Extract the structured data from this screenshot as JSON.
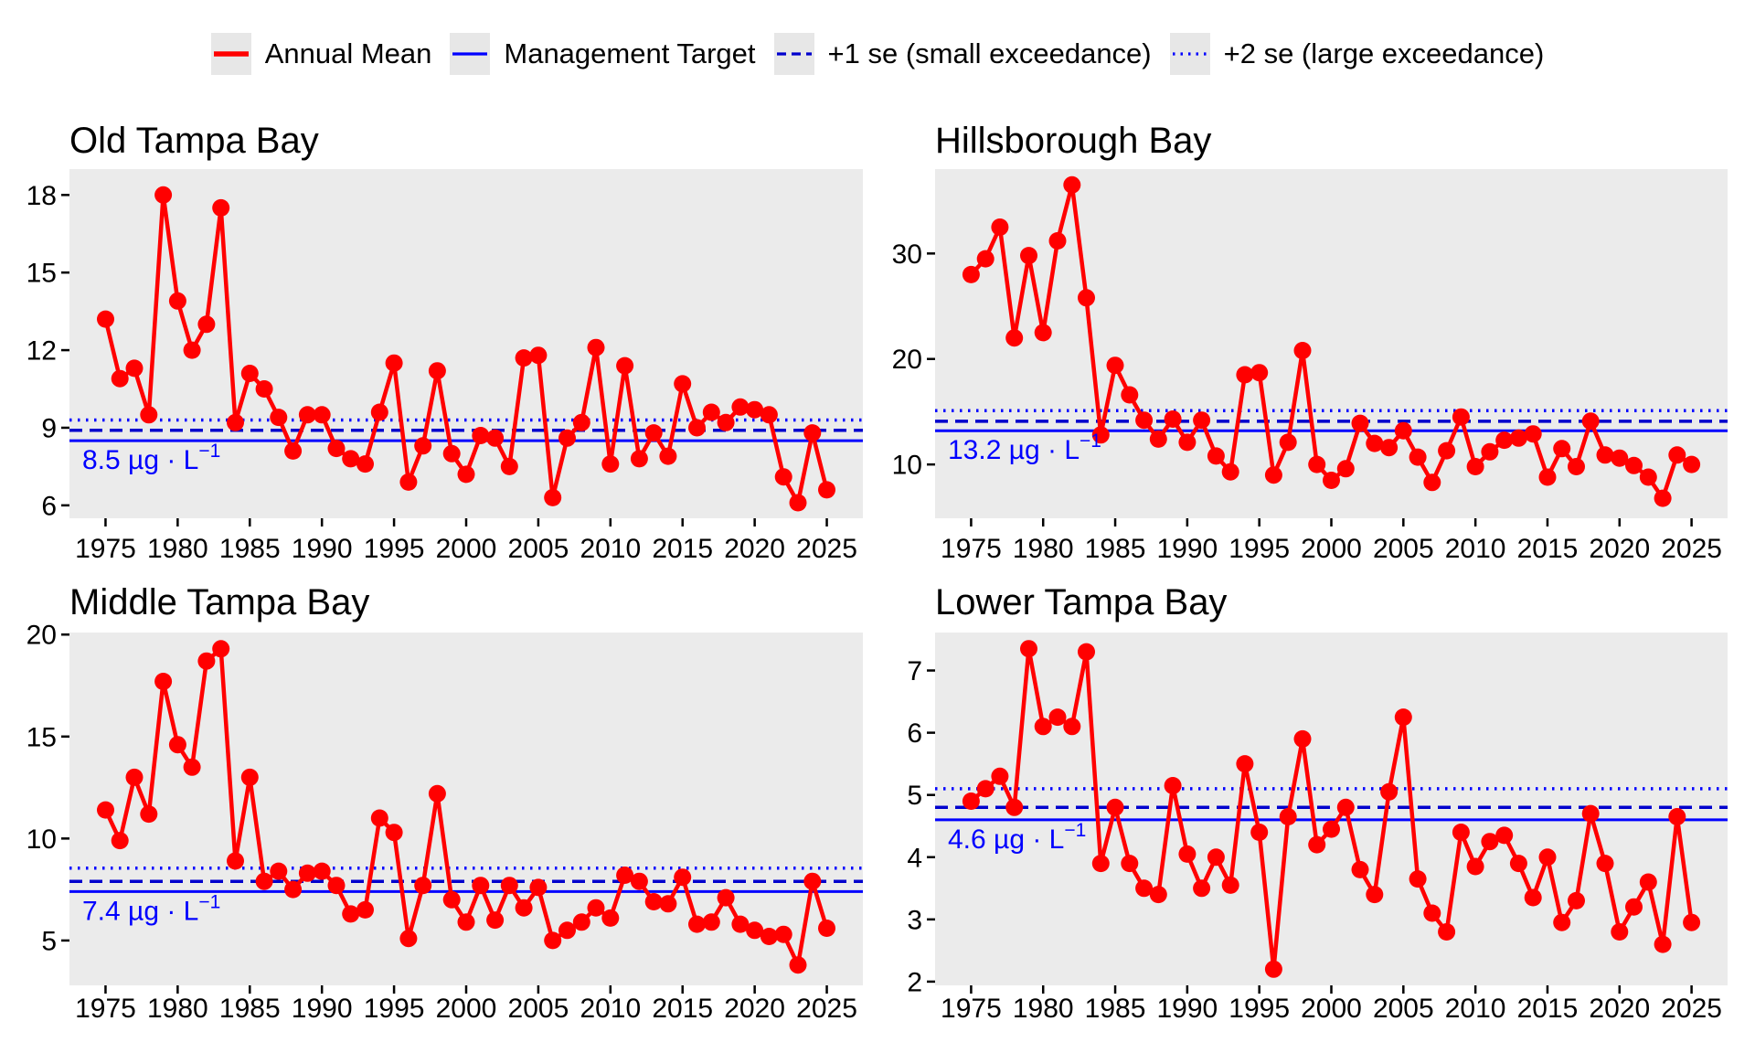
{
  "colors": {
    "annual_mean": "#FF0000",
    "management_target": "#0000FF",
    "plus_1se_line": "#0000CD",
    "plus_2se_line": "#0000FF",
    "annotation_text": "#0000FF",
    "panel_background": "#EBEBEB",
    "legend_key_background": "#E7E7E7",
    "axis_text": "#000000"
  },
  "legend": {
    "items": [
      {
        "label": "Annual Mean",
        "color": "#FF0000",
        "style": "solid",
        "width": 5.5
      },
      {
        "label": "Management Target",
        "color": "#0000FF",
        "style": "solid",
        "width": 3.2
      },
      {
        "label": "+1 se (small exceedance)",
        "color": "#0000CD",
        "style": "dashed",
        "width": 3.2
      },
      {
        "label": "+2 se (large exceedance)",
        "color": "#0000FF",
        "style": "dotted",
        "width": 3.2
      }
    ]
  },
  "axes": {
    "x_ticks": [
      1975,
      1980,
      1985,
      1990,
      1995,
      2000,
      2005,
      2010,
      2015,
      2020,
      2025
    ],
    "x_limits": [
      1972.5,
      2027.5
    ],
    "years": [
      1975,
      1976,
      1977,
      1978,
      1979,
      1980,
      1981,
      1982,
      1983,
      1984,
      1985,
      1986,
      1987,
      1988,
      1989,
      1990,
      1991,
      1992,
      1993,
      1994,
      1995,
      1996,
      1997,
      1998,
      1999,
      2000,
      2001,
      2002,
      2003,
      2004,
      2005,
      2006,
      2007,
      2008,
      2009,
      2010,
      2011,
      2012,
      2013,
      2014,
      2015,
      2016,
      2017,
      2018,
      2019,
      2020,
      2021,
      2022,
      2023,
      2024,
      2025
    ]
  },
  "chart_data": [
    {
      "type": "line",
      "title": "Old Tampa Bay",
      "series_name": "Annual Mean",
      "values": [
        13.2,
        10.9,
        11.3,
        9.5,
        18.0,
        13.9,
        12.0,
        13.0,
        17.5,
        9.2,
        11.1,
        10.5,
        9.4,
        8.1,
        9.5,
        9.5,
        8.2,
        7.8,
        7.6,
        9.6,
        11.5,
        6.9,
        8.3,
        11.2,
        8.0,
        7.2,
        8.7,
        8.6,
        7.5,
        11.7,
        11.8,
        6.3,
        8.6,
        9.2,
        12.1,
        7.6,
        11.4,
        7.8,
        8.8,
        7.9,
        10.7,
        9.0,
        9.6,
        9.2,
        9.8,
        9.7,
        9.5,
        7.1,
        6.1,
        8.8,
        6.6
      ],
      "management_target": 8.5,
      "plus_1se": 8.9,
      "plus_2se": 9.3,
      "annotation_main": "8.5 µg · L",
      "annotation_sup": "−1",
      "yticks": [
        6,
        9,
        12,
        15,
        18
      ],
      "ylim": [
        5.5,
        19.0
      ]
    },
    {
      "type": "line",
      "title": "Hillsborough Bay",
      "series_name": "Annual Mean",
      "values": [
        28.0,
        29.5,
        32.5,
        22.0,
        29.8,
        22.5,
        31.2,
        36.5,
        25.8,
        12.8,
        19.4,
        16.6,
        14.2,
        12.4,
        14.3,
        12.1,
        14.2,
        10.8,
        9.3,
        18.5,
        18.7,
        9.0,
        12.1,
        20.8,
        10.0,
        8.5,
        9.6,
        13.9,
        12.0,
        11.6,
        13.2,
        10.7,
        8.3,
        11.3,
        14.5,
        9.8,
        11.2,
        12.3,
        12.5,
        12.9,
        8.8,
        11.5,
        9.8,
        14.1,
        10.9,
        10.6,
        9.9,
        8.8,
        6.8,
        10.9,
        10.0
      ],
      "management_target": 13.2,
      "plus_1se": 14.1,
      "plus_2se": 15.1,
      "annotation_main": "13.2 µg · L",
      "annotation_sup": "−1",
      "yticks": [
        10,
        20,
        30
      ],
      "ylim": [
        4.9,
        38.0
      ]
    },
    {
      "type": "line",
      "title": "Middle Tampa Bay",
      "series_name": "Annual Mean",
      "values": [
        11.4,
        9.9,
        13.0,
        11.2,
        17.7,
        14.6,
        13.5,
        18.7,
        19.3,
        8.9,
        13.0,
        7.9,
        8.4,
        7.5,
        8.3,
        8.4,
        7.7,
        6.3,
        6.5,
        11.0,
        10.3,
        5.1,
        7.7,
        12.2,
        7.0,
        5.9,
        7.7,
        6.0,
        7.7,
        6.6,
        7.6,
        5.0,
        5.5,
        5.9,
        6.6,
        6.1,
        8.2,
        7.9,
        6.9,
        6.8,
        8.1,
        5.8,
        5.9,
        7.1,
        5.8,
        5.5,
        5.2,
        5.3,
        3.8,
        7.9,
        5.6
      ],
      "management_target": 7.4,
      "plus_1se": 7.9,
      "plus_2se": 8.55,
      "annotation_main": "7.4 µg · L",
      "annotation_sup": "−1",
      "yticks": [
        5,
        10,
        15,
        20
      ],
      "ylim": [
        2.8,
        20.1
      ]
    },
    {
      "type": "line",
      "title": "Lower Tampa Bay",
      "series_name": "Annual Mean",
      "values": [
        4.9,
        5.1,
        5.3,
        4.8,
        7.35,
        6.1,
        6.25,
        6.1,
        7.3,
        3.9,
        4.8,
        3.9,
        3.5,
        3.4,
        5.15,
        4.05,
        3.5,
        4.0,
        3.55,
        5.5,
        4.4,
        2.2,
        4.65,
        5.9,
        4.2,
        4.45,
        4.8,
        3.8,
        3.4,
        5.05,
        6.25,
        3.65,
        3.1,
        2.8,
        4.4,
        3.85,
        4.25,
        4.35,
        3.9,
        3.35,
        4.0,
        2.95,
        3.3,
        4.7,
        3.9,
        2.8,
        3.2,
        3.6,
        2.6,
        4.65,
        2.95
      ],
      "management_target": 4.6,
      "plus_1se": 4.8,
      "plus_2se": 5.1,
      "annotation_main": "4.6 µg · L",
      "annotation_sup": "−1",
      "yticks": [
        2,
        3,
        4,
        5,
        6,
        7
      ],
      "ylim": [
        1.94,
        7.61
      ]
    }
  ]
}
